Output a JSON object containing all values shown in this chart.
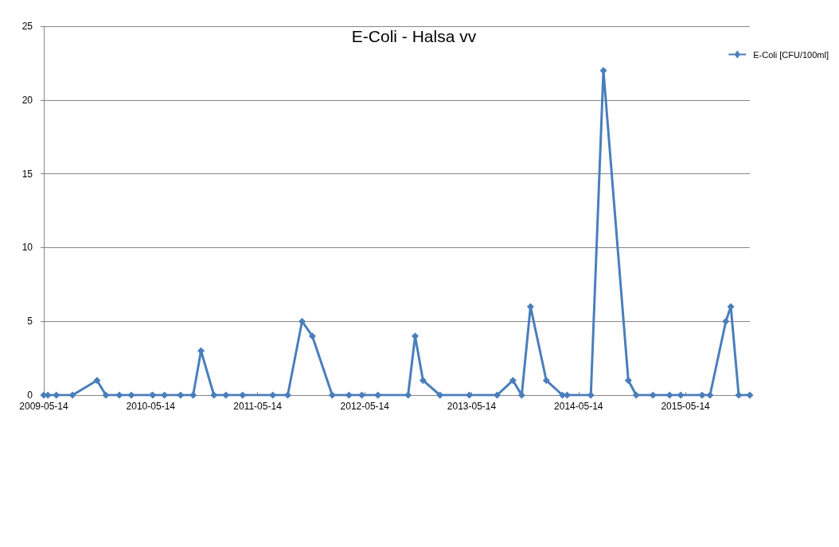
{
  "chart_data": {
    "type": "line",
    "title": "E-Coli - Halsa vv",
    "x": [
      "2009-05-14",
      "2009-05-28",
      "2009-06-26",
      "2009-08-20",
      "2009-11-12",
      "2009-12-12",
      "2010-01-27",
      "2010-03-09",
      "2010-05-21",
      "2010-06-30",
      "2010-08-24",
      "2010-10-06",
      "2010-11-02",
      "2010-12-16",
      "2011-01-26",
      "2011-03-24",
      "2011-07-05",
      "2011-08-25",
      "2011-10-13",
      "2011-11-17",
      "2012-01-24",
      "2012-03-21",
      "2012-05-04",
      "2012-06-28",
      "2012-10-09",
      "2012-11-02",
      "2012-11-29",
      "2013-01-26",
      "2013-05-06",
      "2013-08-09",
      "2013-10-02",
      "2013-11-01",
      "2013-12-01",
      "2014-01-24",
      "2014-03-20",
      "2014-04-05",
      "2014-06-25",
      "2014-08-07",
      "2014-10-31",
      "2014-11-27",
      "2015-01-23",
      "2015-03-21",
      "2015-04-28",
      "2015-07-10",
      "2015-08-06",
      "2015-09-29",
      "2015-10-16",
      "2015-11-12",
      "2015-12-20"
    ],
    "series": [
      {
        "name": "E-Coli [CFU/100ml]",
        "color": "#4a7ebb",
        "values": [
          0,
          0,
          0,
          0,
          1,
          0,
          0,
          0,
          0,
          0,
          0,
          0,
          3,
          0,
          0,
          0,
          0,
          0,
          5,
          4,
          0,
          0,
          0,
          0,
          0,
          4,
          1,
          0,
          0,
          0,
          1,
          0,
          6,
          1,
          0,
          0,
          0,
          22,
          1,
          0,
          0,
          0,
          0,
          0,
          0,
          5,
          6,
          0,
          0
        ]
      }
    ],
    "xlim": [
      "2009-05-14",
      "2015-12-20"
    ],
    "xticks": [
      "2009-05-14",
      "2010-05-14",
      "2011-05-14",
      "2012-05-14",
      "2013-05-14",
      "2014-05-14",
      "2015-05-14"
    ],
    "ylim": [
      0,
      25
    ],
    "yticks": [
      0,
      5,
      10,
      15,
      20,
      25
    ],
    "grid": "y",
    "legend": "top right",
    "marker": "diamond",
    "line_style": "solid"
  }
}
